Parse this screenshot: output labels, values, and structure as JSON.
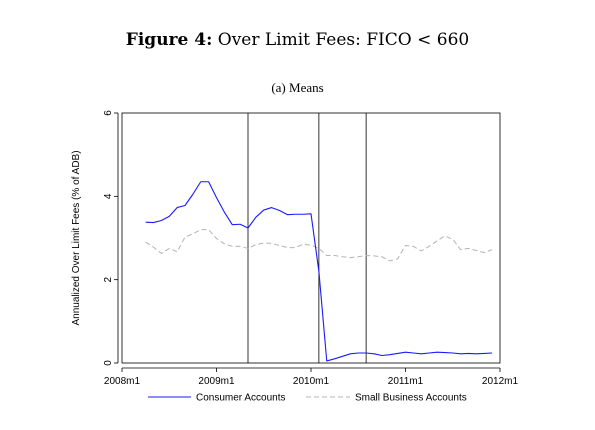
{
  "figure": {
    "label": "Figure 4:",
    "title": "Over Limit Fees: FICO < 660",
    "subtitle": "(a) Means"
  },
  "chart_data": {
    "type": "line",
    "title": "Over Limit Fees: FICO < 660",
    "subtitle": "(a) Means",
    "xlabel": "",
    "ylabel": "Annualized Over Limit Fees (% of ADB)",
    "x_ticks": [
      "2008m1",
      "2009m1",
      "2010m1",
      "2011m1",
      "2012m1"
    ],
    "y_ticks": [
      0,
      2,
      4,
      6
    ],
    "xlim": [
      "2008m1",
      "2012m1"
    ],
    "ylim": [
      0,
      6
    ],
    "grid": false,
    "legend_position": "bottom",
    "vertical_lines": [
      "2009m5",
      "2010m2",
      "2010m8"
    ],
    "x": [
      "2008m4",
      "2008m5",
      "2008m6",
      "2008m7",
      "2008m8",
      "2008m9",
      "2008m10",
      "2008m11",
      "2008m12",
      "2009m1",
      "2009m2",
      "2009m3",
      "2009m4",
      "2009m5",
      "2009m6",
      "2009m7",
      "2009m8",
      "2009m9",
      "2009m10",
      "2009m11",
      "2009m12",
      "2010m1",
      "2010m2",
      "2010m3",
      "2010m4",
      "2010m5",
      "2010m6",
      "2010m7",
      "2010m8",
      "2010m9",
      "2010m10",
      "2010m11",
      "2010m12",
      "2011m1",
      "2011m2",
      "2011m3",
      "2011m4",
      "2011m5",
      "2011m6",
      "2011m7",
      "2011m8",
      "2011m9",
      "2011m10",
      "2011m11",
      "2011m12"
    ],
    "series": [
      {
        "name": "Consumer Accounts",
        "color": "#1a1aff",
        "style": "solid",
        "values": [
          3.38,
          3.37,
          3.42,
          3.52,
          3.73,
          3.78,
          4.05,
          4.35,
          4.35,
          3.97,
          3.62,
          3.32,
          3.33,
          3.24,
          3.5,
          3.67,
          3.73,
          3.66,
          3.56,
          3.57,
          3.57,
          3.58,
          2.2,
          0.05,
          0.1,
          0.16,
          0.22,
          0.24,
          0.24,
          0.22,
          0.18,
          0.2,
          0.23,
          0.26,
          0.24,
          0.22,
          0.24,
          0.26,
          0.25,
          0.24,
          0.22,
          0.23,
          0.22,
          0.23,
          0.24
        ]
      },
      {
        "name": "Small Business Accounts",
        "color": "#b4b4b4",
        "style": "dashed",
        "values": [
          2.9,
          2.78,
          2.63,
          2.75,
          2.67,
          3.02,
          3.1,
          3.2,
          3.2,
          2.99,
          2.86,
          2.8,
          2.8,
          2.75,
          2.84,
          2.88,
          2.87,
          2.82,
          2.77,
          2.77,
          2.85,
          2.83,
          2.75,
          2.58,
          2.58,
          2.55,
          2.53,
          2.55,
          2.58,
          2.57,
          2.55,
          2.45,
          2.5,
          2.82,
          2.8,
          2.69,
          2.8,
          2.93,
          3.05,
          2.97,
          2.72,
          2.75,
          2.7,
          2.65,
          2.72
        ]
      }
    ]
  }
}
